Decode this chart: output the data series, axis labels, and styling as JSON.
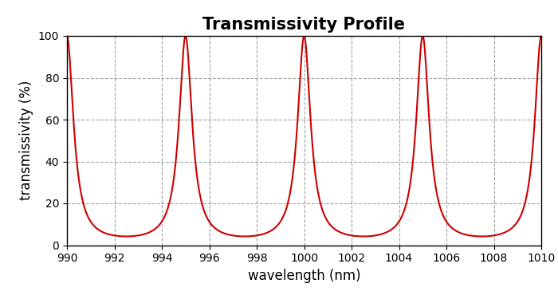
{
  "title": "Transmissivity Profile",
  "xlabel": "wavelength (nm)",
  "ylabel": "transmissivity (%)",
  "xlim": [
    990,
    1010
  ],
  "ylim": [
    0,
    100
  ],
  "xticks": [
    990,
    992,
    994,
    996,
    998,
    1000,
    1002,
    1004,
    1006,
    1008,
    1010
  ],
  "yticks": [
    0,
    20,
    40,
    60,
    80,
    100
  ],
  "line_color": "#cc0000",
  "line_width": 1.5,
  "fsr_nm": 5.0,
  "peak_wavelength": 990.0,
  "finesse": 7.5,
  "background_color": "#ffffff",
  "grid_color": "#999999",
  "grid_linestyle": "--",
  "title_fontsize": 15,
  "label_fontsize": 12,
  "tick_fontsize": 10,
  "tick_color": "#000000",
  "label_color": "#000000",
  "title_color": "#000000"
}
